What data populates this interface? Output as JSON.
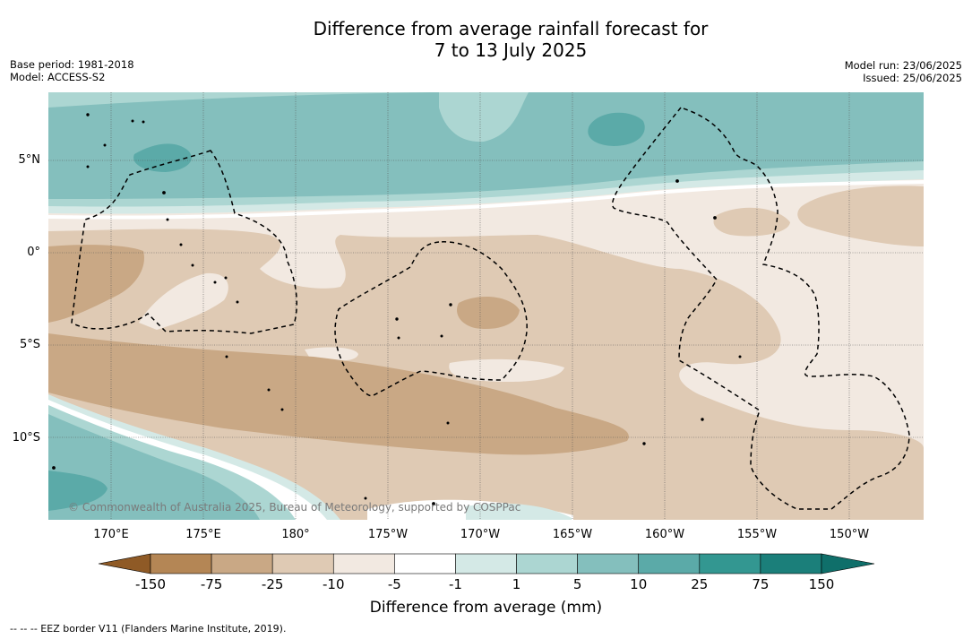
{
  "title_line1": "Difference from average rainfall forecast for",
  "title_line2": "7 to 13 July 2025",
  "base_period": "Base period: 1981-2018",
  "model": "Model: ACCESS-S2",
  "model_run": "Model run: 23/06/2025",
  "issued": "Issued: 25/06/2025",
  "lat_labels": [
    "5°N",
    "0°",
    "5°S",
    "10°S"
  ],
  "lon_labels": [
    "170°E",
    "175°E",
    "180°",
    "175°W",
    "170°W",
    "165°W",
    "160°W",
    "155°W",
    "150°W"
  ],
  "credit": "© Commonwealth of Australia 2025, Bureau of Meteorology, supported by COSPPac",
  "colorbar": {
    "ticks": [
      "-150",
      "-75",
      "-25",
      "-10",
      "-5",
      "-1",
      "1",
      "5",
      "10",
      "25",
      "75",
      "150"
    ],
    "colors": [
      "#a56e36",
      "#b48655",
      "#c9a885",
      "#dfcab4",
      "#f2e9e1",
      "#ffffff",
      "#d4e9e6",
      "#acd6d2",
      "#84bfbd",
      "#5baaa8",
      "#339791",
      "#1b7f7a"
    ],
    "label": "Difference from average (mm)"
  },
  "footnote": "--  --  -- EEZ border V11 (Flanders Marine Institute, 2019).",
  "colors": {
    "teal_strong": "#5baaa8",
    "teal_mid": "#84bfbd",
    "teal_light": "#acd6d2",
    "teal_pale": "#d4e9e6",
    "brown_pale": "#f2e9e1",
    "brown_light": "#dfcab4",
    "brown_mid": "#c9a885"
  }
}
